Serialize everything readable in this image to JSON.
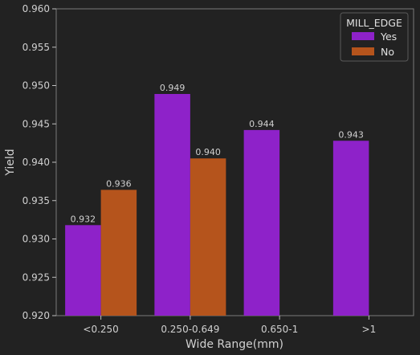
{
  "chart_data": {
    "type": "bar",
    "xlabel": "Wide Range(mm)",
    "ylabel": "Yield",
    "categories": [
      "<0.250",
      "0.250-0.649",
      "0.650-1",
      ">1"
    ],
    "ylim": [
      0.92,
      0.96
    ],
    "yticks": [
      "0.920",
      "0.925",
      "0.930",
      "0.935",
      "0.940",
      "0.945",
      "0.950",
      "0.955",
      "0.960"
    ],
    "series": [
      {
        "name": "Yes",
        "color": "#8E22C9",
        "values": [
          0.9318,
          0.9489,
          0.9442,
          0.9428
        ],
        "labels": [
          "0.932",
          "0.949",
          "0.944",
          "0.943"
        ]
      },
      {
        "name": "No",
        "color": "#B5541C",
        "values": [
          0.9364,
          0.9405,
          null,
          null
        ],
        "labels": [
          "0.936",
          "0.940",
          null,
          null
        ]
      }
    ],
    "legend": {
      "title": "MILL_EDGE",
      "position": "top-right"
    },
    "grid": false
  }
}
